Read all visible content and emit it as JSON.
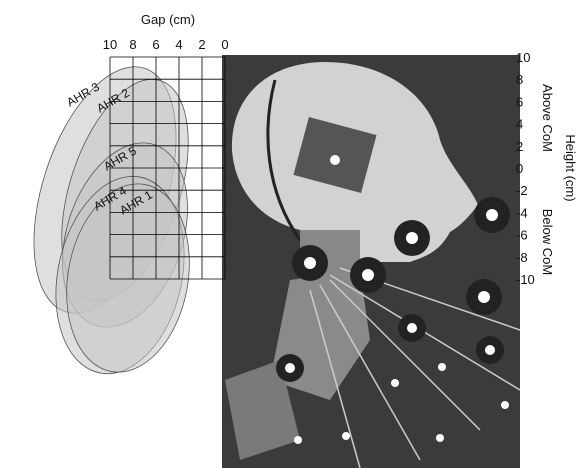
{
  "gap_axis": {
    "title": "Gap (cm)",
    "lim": [
      10,
      0
    ],
    "ticks": [
      10,
      8,
      6,
      4,
      2,
      0
    ]
  },
  "height_axis": {
    "title": "Height (cm)",
    "lim": [
      10,
      -10
    ],
    "ticks": [
      10,
      8,
      6,
      4,
      2,
      0,
      -2,
      -4,
      -6,
      -8,
      -10
    ],
    "above_label": "Above CoM",
    "below_label": "Below CoM"
  },
  "regions": [
    {
      "label": "AHR 3"
    },
    {
      "label": "AHR 2"
    },
    {
      "label": "AHR 5"
    },
    {
      "label": "AHR 4"
    },
    {
      "label": "AHR 1"
    }
  ]
}
